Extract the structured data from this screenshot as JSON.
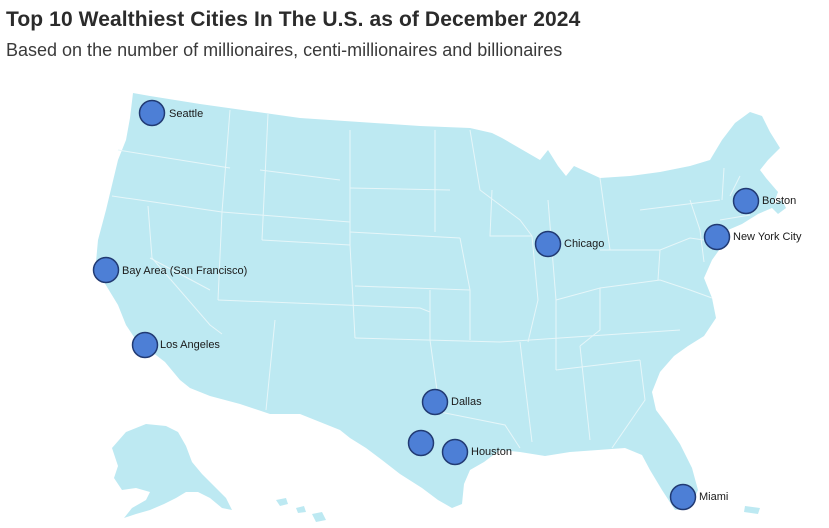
{
  "header": {
    "title": "Top 10 Wealthiest Cities In The U.S. as of December 2024",
    "subtitle": "Based on the number of millionaires, centi-millionaires and billionaires"
  },
  "colors": {
    "land": "#bde9f2",
    "state_border": "#e6f6f9",
    "marker_fill": "#4d7fd6",
    "marker_stroke": "#213a73"
  },
  "cities": [
    {
      "id": "seattle",
      "label": "Seattle"
    },
    {
      "id": "bay-area",
      "label": "Bay Area (San Francisco)"
    },
    {
      "id": "los-angeles",
      "label": "Los Angeles"
    },
    {
      "id": "chicago",
      "label": "Chicago"
    },
    {
      "id": "dallas",
      "label": "Dallas"
    },
    {
      "id": "austin",
      "label": ""
    },
    {
      "id": "houston",
      "label": "Houston"
    },
    {
      "id": "miami",
      "label": "Miami"
    },
    {
      "id": "new-york-city",
      "label": "New York City"
    },
    {
      "id": "boston",
      "label": "Boston"
    }
  ]
}
